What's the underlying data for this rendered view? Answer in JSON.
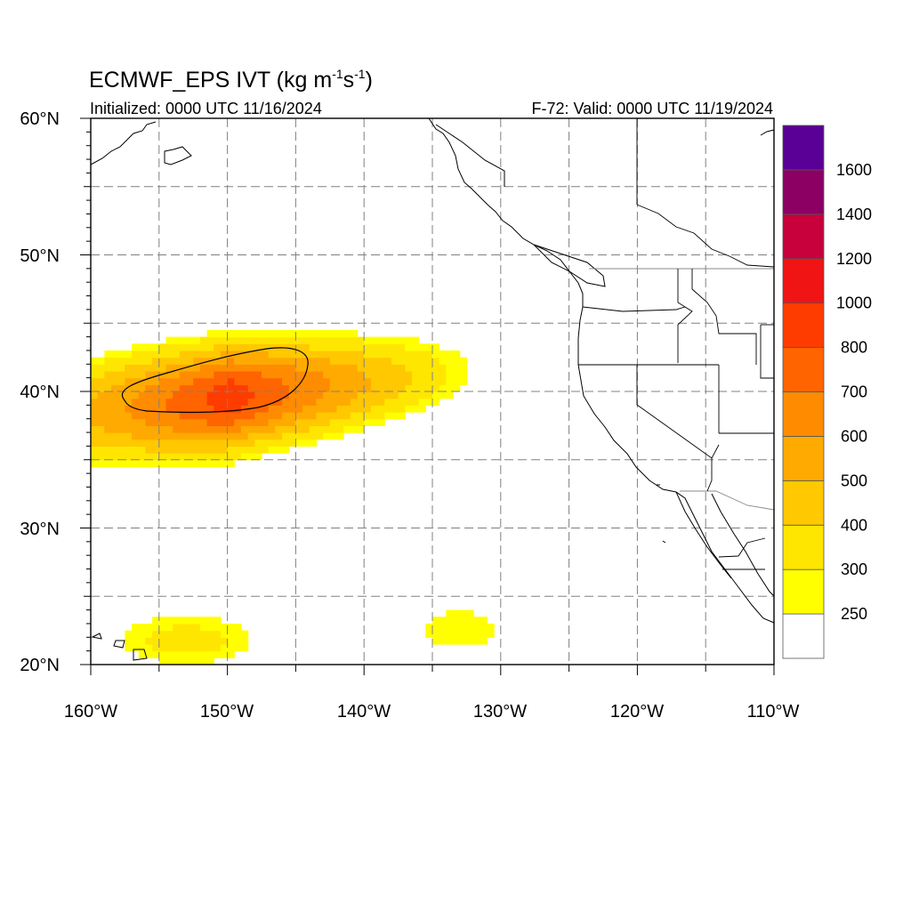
{
  "header": {
    "title_prefix": "ECMWF_EPS IVT (kg m",
    "title_exp1": "-1",
    "title_mid": "s",
    "title_exp2": "-1",
    "title_suffix": ")",
    "initialized": "Initialized: 0000 UTC 11/16/2024",
    "valid": "F-72: Valid: 0000 UTC 11/19/2024"
  },
  "chart_data": {
    "type": "heatmap",
    "variable": "IVT (kg m-1 s-1)",
    "lon_range": [
      -160,
      -110
    ],
    "lat_range": [
      20,
      60
    ],
    "x_ticks": [
      "160°W",
      "150°W",
      "140°W",
      "130°W",
      "120°W",
      "110°W"
    ],
    "y_ticks": [
      "20°N",
      "30°N",
      "40°N",
      "50°N",
      "60°N"
    ],
    "grid": "dashed, every 5°",
    "contour_level": 700,
    "regions": [
      {
        "name": "main_plume",
        "lon": [
          -160,
          -131
        ],
        "lat": [
          33,
          46
        ],
        "max_value": 800
      },
      {
        "name": "hawaii_patch",
        "lon": [
          -160,
          -143
        ],
        "lat": [
          20,
          24
        ],
        "max_value": 300
      },
      {
        "name": "subtropical_patch",
        "lon": [
          -138,
          -128
        ],
        "lat": [
          20,
          25
        ],
        "max_value": 250
      }
    ]
  },
  "colorbar": {
    "colors": [
      "#ffffff",
      "#ffff00",
      "#ffe600",
      "#ffc800",
      "#ffaa00",
      "#ff8c00",
      "#ff6400",
      "#ff3c00",
      "#f01414",
      "#c8003c",
      "#8c0064",
      "#5a0096"
    ],
    "labels": [
      "250",
      "300",
      "400",
      "500",
      "600",
      "700",
      "800",
      "1000",
      "1200",
      "1400",
      "1600"
    ]
  }
}
